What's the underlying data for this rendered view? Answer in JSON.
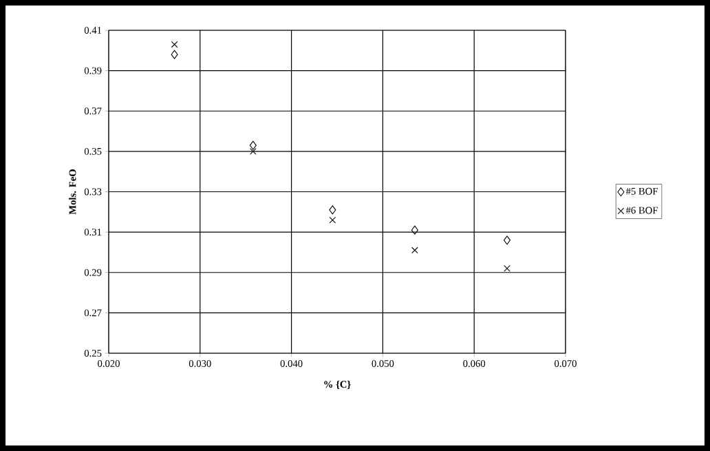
{
  "chart_data": {
    "type": "scatter",
    "xlabel": "% {C}",
    "ylabel": "Mols. FeO",
    "x": [
      0.0272,
      0.0358,
      0.0445,
      0.0535,
      0.0636
    ],
    "series": [
      {
        "name": "#5 BOF",
        "color": "#000000",
        "marker": "diamond",
        "values": [
          0.398,
          0.353,
          0.321,
          0.311,
          0.306
        ]
      },
      {
        "name": "#6 BOF",
        "color": "#000000",
        "marker": "cross",
        "values": [
          0.403,
          0.35,
          0.316,
          0.301,
          0.292
        ]
      }
    ],
    "xlim": [
      0.02,
      0.07
    ],
    "xticks": [
      {
        "value": 0.02,
        "label": "0.020"
      },
      {
        "value": 0.03,
        "label": "0.030"
      },
      {
        "value": 0.04,
        "label": "0.040"
      },
      {
        "value": 0.05,
        "label": "0.050"
      },
      {
        "value": 0.06,
        "label": "0.060"
      },
      {
        "value": 0.07,
        "label": "0.070"
      }
    ],
    "ylim": [
      0.25,
      0.41
    ],
    "yticks": [
      0.25,
      0.27,
      0.29,
      0.31,
      0.33,
      0.35,
      0.37,
      0.39,
      0.41
    ],
    "grid": true,
    "legend": "right"
  }
}
